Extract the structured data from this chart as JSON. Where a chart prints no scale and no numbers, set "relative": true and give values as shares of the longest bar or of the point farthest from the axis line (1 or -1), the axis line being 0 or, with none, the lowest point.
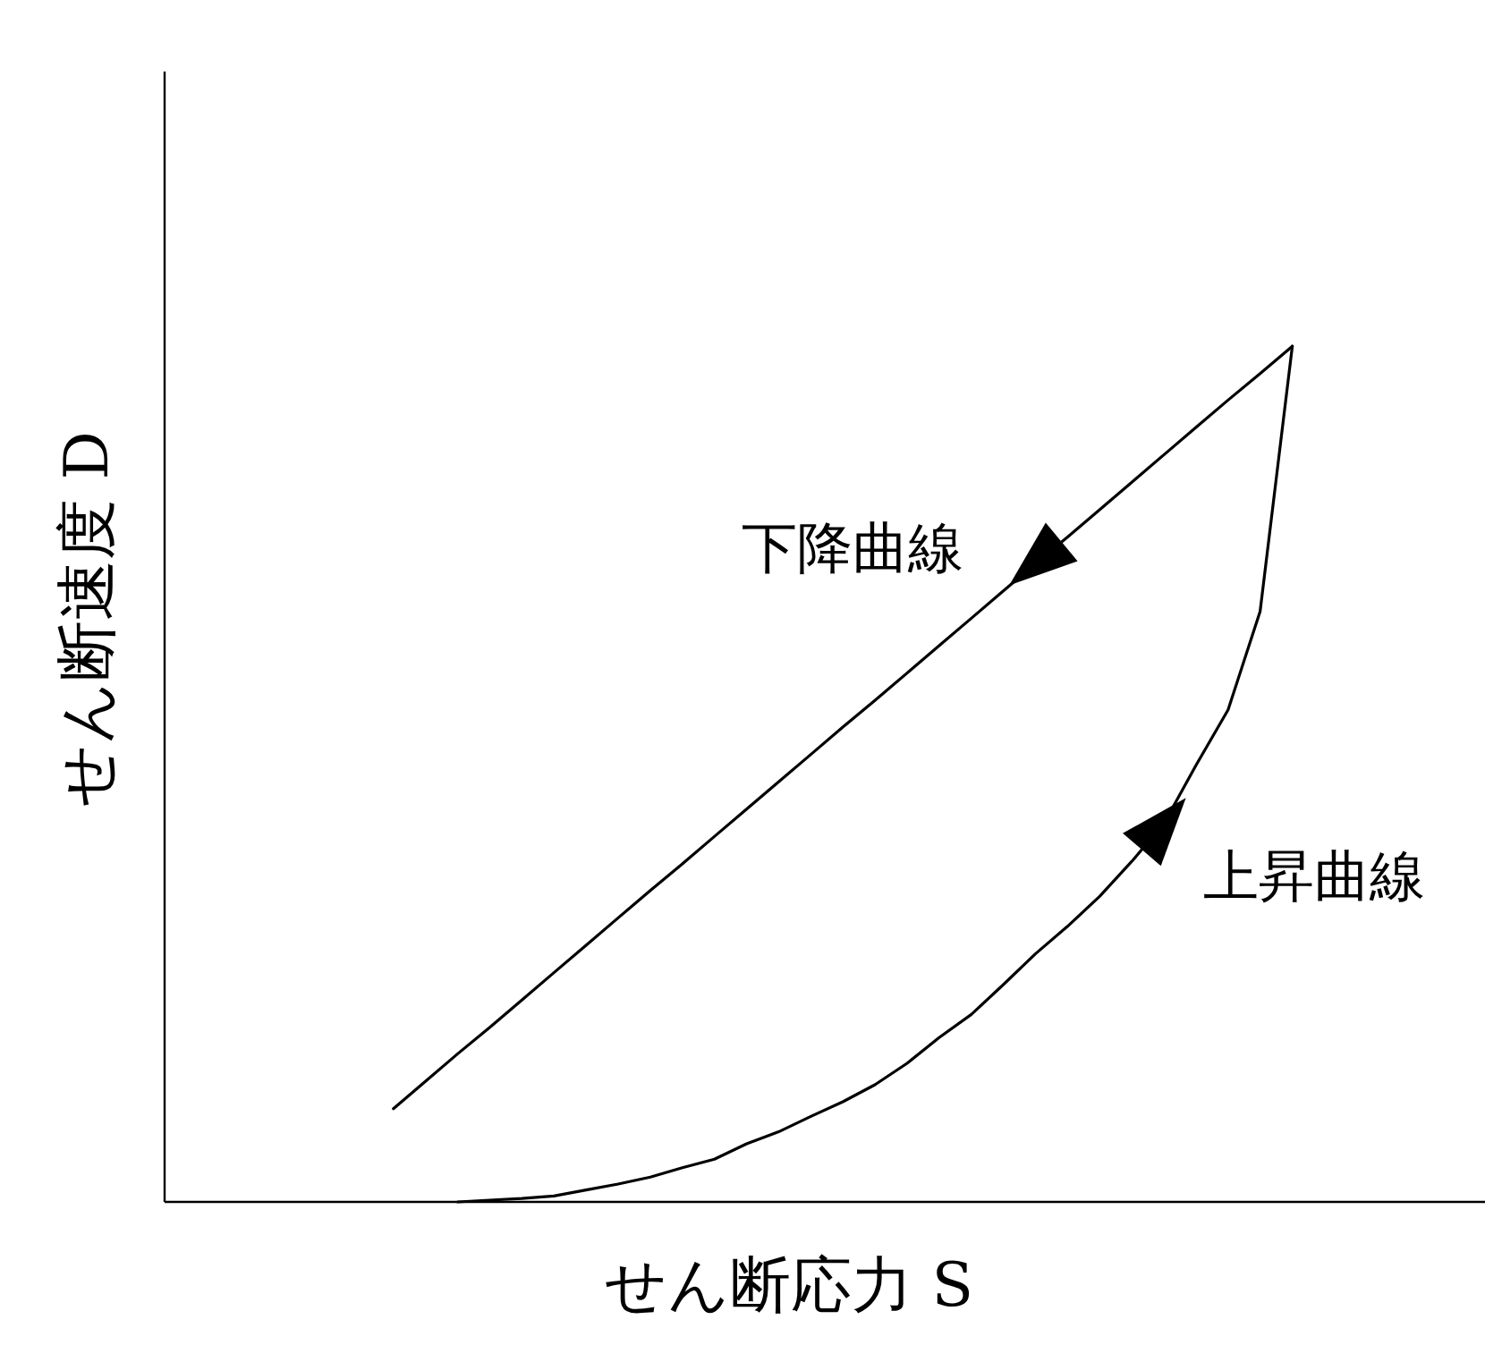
{
  "chart_data": {
    "type": "line",
    "relative": true,
    "xlabel": "せん断応力 S",
    "ylabel": "せん断速度 D",
    "marker": "none",
    "categories": [
      null,
      null,
      null,
      null,
      null,
      null,
      null,
      null,
      null,
      null,
      null,
      null,
      null,
      null,
      null,
      null,
      null,
      null,
      null,
      null,
      null,
      null,
      null,
      null,
      null,
      null,
      null,
      null,
      null
    ],
    "series": [
      {
        "name": "下降曲線",
        "color": "#000000",
        "values": [
          0.109,
          0.141,
          0.173,
          0.204,
          0.236,
          0.268,
          0.3,
          0.332,
          0.364,
          0.395,
          0.427,
          0.459,
          0.491,
          0.523,
          0.555,
          0.586,
          0.618,
          0.65,
          0.682,
          0.714,
          0.746,
          0.777,
          0.809,
          0.841,
          0.873,
          0.905,
          0.937,
          0.968,
          1.0
        ]
      },
      {
        "name": "上昇曲線",
        "color": "#000000",
        "values": [
          null,
          null,
          0,
          0.002,
          0.004,
          0.007,
          0.014,
          0.021,
          0.029,
          0.04,
          0.05,
          0.068,
          0.082,
          0.1,
          0.117,
          0.137,
          0.162,
          0.192,
          0.219,
          0.254,
          0.29,
          0.322,
          0.357,
          0.398,
          0.442,
          0.51,
          0.575,
          0.69,
          1.0
        ]
      }
    ]
  }
}
